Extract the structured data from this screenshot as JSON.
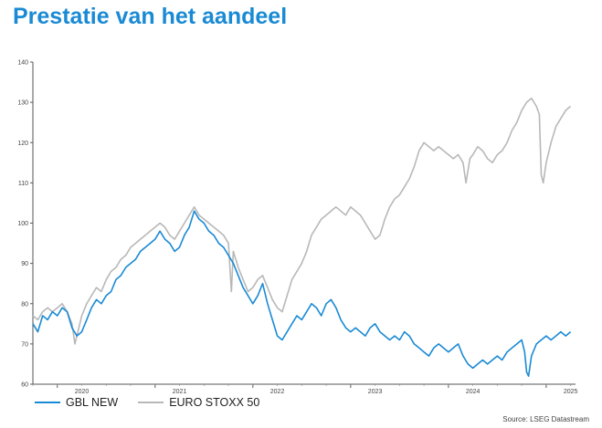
{
  "title": "Prestatie van het aandeel",
  "source": "Source: LSEG Datastream",
  "colors": {
    "title": "#1a8ad4",
    "gbl": "#1a8ad4",
    "stoxx": "#b8b8b8"
  },
  "chart_data": {
    "type": "line",
    "xlabel": "",
    "ylabel": "",
    "ylim": [
      60,
      140
    ],
    "yticks": [
      60,
      70,
      80,
      90,
      100,
      110,
      120,
      130,
      140
    ],
    "xlim": [
      2019.75,
      2025.3
    ],
    "xtick_labels": [
      {
        "label": "2020",
        "x": 2020.0
      },
      {
        "label": "2021",
        "x": 2021.0
      },
      {
        "label": "2022",
        "x": 2022.0
      },
      {
        "label": "2023",
        "x": 2023.0
      },
      {
        "label": "2024",
        "x": 2024.0
      },
      {
        "label": "2025",
        "x": 2025.0
      }
    ],
    "grid": false,
    "legend_position": "bottom-left",
    "series": [
      {
        "name": "GBL NEW",
        "color": "#1a8ad4",
        "points": [
          [
            2019.75,
            75
          ],
          [
            2019.8,
            73
          ],
          [
            2019.85,
            77
          ],
          [
            2019.9,
            76
          ],
          [
            2019.95,
            78
          ],
          [
            2020.0,
            77
          ],
          [
            2020.05,
            79
          ],
          [
            2020.1,
            78
          ],
          [
            2020.15,
            74
          ],
          [
            2020.2,
            72
          ],
          [
            2020.25,
            73
          ],
          [
            2020.3,
            76
          ],
          [
            2020.35,
            79
          ],
          [
            2020.4,
            81
          ],
          [
            2020.45,
            80
          ],
          [
            2020.5,
            82
          ],
          [
            2020.55,
            83
          ],
          [
            2020.6,
            86
          ],
          [
            2020.65,
            87
          ],
          [
            2020.7,
            89
          ],
          [
            2020.75,
            90
          ],
          [
            2020.8,
            91
          ],
          [
            2020.85,
            93
          ],
          [
            2020.9,
            94
          ],
          [
            2020.95,
            95
          ],
          [
            2021.0,
            96
          ],
          [
            2021.05,
            98
          ],
          [
            2021.1,
            96
          ],
          [
            2021.15,
            95
          ],
          [
            2021.2,
            93
          ],
          [
            2021.25,
            94
          ],
          [
            2021.3,
            97
          ],
          [
            2021.35,
            99
          ],
          [
            2021.4,
            103
          ],
          [
            2021.45,
            101
          ],
          [
            2021.5,
            100
          ],
          [
            2021.55,
            98
          ],
          [
            2021.6,
            97
          ],
          [
            2021.65,
            95
          ],
          [
            2021.7,
            94
          ],
          [
            2021.75,
            92
          ],
          [
            2021.8,
            90
          ],
          [
            2021.85,
            87
          ],
          [
            2021.9,
            84
          ],
          [
            2021.95,
            82
          ],
          [
            2022.0,
            80
          ],
          [
            2022.05,
            82
          ],
          [
            2022.1,
            85
          ],
          [
            2022.15,
            80
          ],
          [
            2022.2,
            76
          ],
          [
            2022.25,
            72
          ],
          [
            2022.3,
            71
          ],
          [
            2022.35,
            73
          ],
          [
            2022.4,
            75
          ],
          [
            2022.45,
            77
          ],
          [
            2022.5,
            76
          ],
          [
            2022.55,
            78
          ],
          [
            2022.6,
            80
          ],
          [
            2022.65,
            79
          ],
          [
            2022.7,
            77
          ],
          [
            2022.75,
            80
          ],
          [
            2022.8,
            81
          ],
          [
            2022.85,
            79
          ],
          [
            2022.9,
            76
          ],
          [
            2022.95,
            74
          ],
          [
            2023.0,
            73
          ],
          [
            2023.05,
            74
          ],
          [
            2023.1,
            73
          ],
          [
            2023.15,
            72
          ],
          [
            2023.2,
            74
          ],
          [
            2023.25,
            75
          ],
          [
            2023.3,
            73
          ],
          [
            2023.35,
            72
          ],
          [
            2023.4,
            71
          ],
          [
            2023.45,
            72
          ],
          [
            2023.5,
            71
          ],
          [
            2023.55,
            73
          ],
          [
            2023.6,
            72
          ],
          [
            2023.65,
            70
          ],
          [
            2023.7,
            69
          ],
          [
            2023.75,
            68
          ],
          [
            2023.8,
            67
          ],
          [
            2023.85,
            69
          ],
          [
            2023.9,
            70
          ],
          [
            2023.95,
            69
          ],
          [
            2024.0,
            68
          ],
          [
            2024.05,
            69
          ],
          [
            2024.1,
            70
          ],
          [
            2024.15,
            67
          ],
          [
            2024.2,
            65
          ],
          [
            2024.25,
            64
          ],
          [
            2024.3,
            65
          ],
          [
            2024.35,
            66
          ],
          [
            2024.4,
            65
          ],
          [
            2024.45,
            66
          ],
          [
            2024.5,
            67
          ],
          [
            2024.55,
            66
          ],
          [
            2024.6,
            68
          ],
          [
            2024.65,
            69
          ],
          [
            2024.7,
            70
          ],
          [
            2024.75,
            71
          ],
          [
            2024.78,
            68
          ],
          [
            2024.8,
            63
          ],
          [
            2024.82,
            62
          ],
          [
            2024.85,
            67
          ],
          [
            2024.9,
            70
          ],
          [
            2024.95,
            71
          ],
          [
            2025.0,
            72
          ],
          [
            2025.05,
            71
          ],
          [
            2025.1,
            72
          ],
          [
            2025.15,
            73
          ],
          [
            2025.2,
            72
          ],
          [
            2025.25,
            73
          ]
        ]
      },
      {
        "name": "EURO STOXX 50",
        "color": "#b8b8b8",
        "points": [
          [
            2019.75,
            77
          ],
          [
            2019.8,
            76
          ],
          [
            2019.85,
            78
          ],
          [
            2019.9,
            79
          ],
          [
            2019.95,
            78
          ],
          [
            2020.0,
            79
          ],
          [
            2020.05,
            80
          ],
          [
            2020.1,
            78
          ],
          [
            2020.15,
            75
          ],
          [
            2020.18,
            70
          ],
          [
            2020.22,
            74
          ],
          [
            2020.25,
            77
          ],
          [
            2020.3,
            80
          ],
          [
            2020.35,
            82
          ],
          [
            2020.4,
            84
          ],
          [
            2020.45,
            83
          ],
          [
            2020.5,
            86
          ],
          [
            2020.55,
            88
          ],
          [
            2020.6,
            89
          ],
          [
            2020.65,
            91
          ],
          [
            2020.7,
            92
          ],
          [
            2020.75,
            94
          ],
          [
            2020.8,
            95
          ],
          [
            2020.85,
            96
          ],
          [
            2020.9,
            97
          ],
          [
            2020.95,
            98
          ],
          [
            2021.0,
            99
          ],
          [
            2021.05,
            100
          ],
          [
            2021.1,
            99
          ],
          [
            2021.15,
            97
          ],
          [
            2021.2,
            96
          ],
          [
            2021.25,
            98
          ],
          [
            2021.3,
            100
          ],
          [
            2021.35,
            102
          ],
          [
            2021.4,
            104
          ],
          [
            2021.45,
            102
          ],
          [
            2021.5,
            101
          ],
          [
            2021.55,
            100
          ],
          [
            2021.6,
            99
          ],
          [
            2021.65,
            98
          ],
          [
            2021.7,
            97
          ],
          [
            2021.75,
            95
          ],
          [
            2021.78,
            83
          ],
          [
            2021.8,
            93
          ],
          [
            2021.85,
            89
          ],
          [
            2021.9,
            86
          ],
          [
            2021.95,
            83
          ],
          [
            2022.0,
            84
          ],
          [
            2022.05,
            86
          ],
          [
            2022.1,
            87
          ],
          [
            2022.15,
            84
          ],
          [
            2022.2,
            81
          ],
          [
            2022.25,
            79
          ],
          [
            2022.3,
            78
          ],
          [
            2022.35,
            82
          ],
          [
            2022.4,
            86
          ],
          [
            2022.45,
            88
          ],
          [
            2022.5,
            90
          ],
          [
            2022.55,
            93
          ],
          [
            2022.6,
            97
          ],
          [
            2022.65,
            99
          ],
          [
            2022.7,
            101
          ],
          [
            2022.75,
            102
          ],
          [
            2022.8,
            103
          ],
          [
            2022.85,
            104
          ],
          [
            2022.9,
            103
          ],
          [
            2022.95,
            102
          ],
          [
            2023.0,
            104
          ],
          [
            2023.05,
            103
          ],
          [
            2023.1,
            102
          ],
          [
            2023.15,
            100
          ],
          [
            2023.2,
            98
          ],
          [
            2023.25,
            96
          ],
          [
            2023.3,
            97
          ],
          [
            2023.35,
            101
          ],
          [
            2023.4,
            104
          ],
          [
            2023.45,
            106
          ],
          [
            2023.5,
            107
          ],
          [
            2023.55,
            109
          ],
          [
            2023.6,
            111
          ],
          [
            2023.65,
            114
          ],
          [
            2023.7,
            118
          ],
          [
            2023.75,
            120
          ],
          [
            2023.8,
            119
          ],
          [
            2023.85,
            118
          ],
          [
            2023.9,
            119
          ],
          [
            2023.95,
            118
          ],
          [
            2024.0,
            117
          ],
          [
            2024.05,
            116
          ],
          [
            2024.1,
            117
          ],
          [
            2024.15,
            115
          ],
          [
            2024.18,
            110
          ],
          [
            2024.22,
            116
          ],
          [
            2024.25,
            117
          ],
          [
            2024.3,
            119
          ],
          [
            2024.35,
            118
          ],
          [
            2024.4,
            116
          ],
          [
            2024.45,
            115
          ],
          [
            2024.5,
            117
          ],
          [
            2024.55,
            118
          ],
          [
            2024.6,
            120
          ],
          [
            2024.65,
            123
          ],
          [
            2024.7,
            125
          ],
          [
            2024.75,
            128
          ],
          [
            2024.8,
            130
          ],
          [
            2024.85,
            131
          ],
          [
            2024.9,
            129
          ],
          [
            2024.93,
            127
          ],
          [
            2024.95,
            112
          ],
          [
            2024.97,
            110
          ],
          [
            2025.0,
            115
          ],
          [
            2025.05,
            120
          ],
          [
            2025.1,
            124
          ],
          [
            2025.15,
            126
          ],
          [
            2025.2,
            128
          ],
          [
            2025.25,
            129
          ]
        ]
      }
    ]
  }
}
